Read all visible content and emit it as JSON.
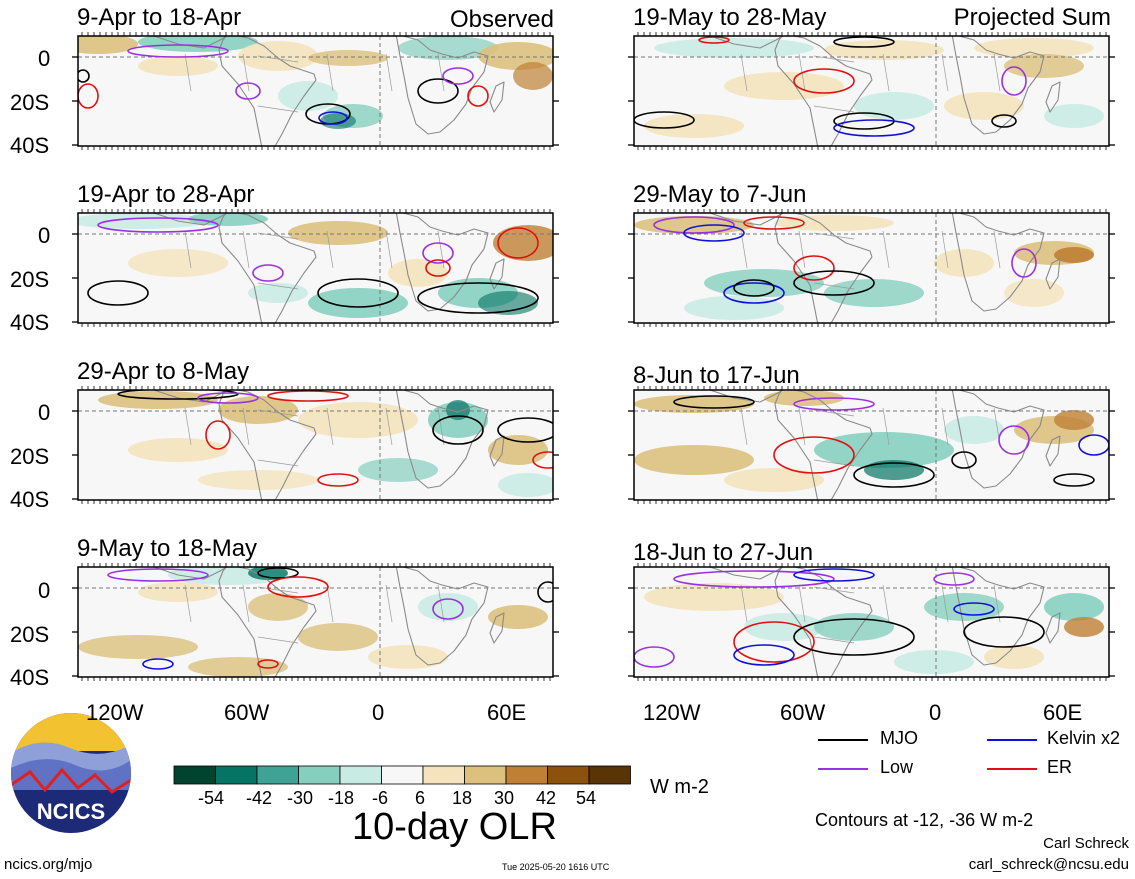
{
  "panels_left": [
    {
      "title": "9-Apr to 18-Apr",
      "source": "Observed"
    },
    {
      "title": "19-Apr to 28-Apr",
      "source": ""
    },
    {
      "title": "29-Apr to 8-May",
      "source": ""
    },
    {
      "title": "9-May to 18-May",
      "source": ""
    }
  ],
  "panels_right": [
    {
      "title": "19-May to 28-May",
      "source": "Projected Sum"
    },
    {
      "title": "29-May to 7-Jun",
      "source": ""
    },
    {
      "title": "8-Jun to 17-Jun",
      "source": ""
    },
    {
      "title": "18-Jun to 27-Jun",
      "source": ""
    }
  ],
  "lat_labels": [
    "0",
    "20S",
    "40S"
  ],
  "lon_labels": [
    "120W",
    "60W",
    "0",
    "60E"
  ],
  "legend": [
    {
      "label": "MJO",
      "color": "#000000"
    },
    {
      "label": "Kelvin x2",
      "color": "#1010d8"
    },
    {
      "label": "Low",
      "color": "#9a30e0"
    },
    {
      "label": "ER",
      "color": "#e01010"
    }
  ],
  "colorbar": {
    "ticks": [
      "-54",
      "-42",
      "-30",
      "-18",
      "-6",
      "6",
      "18",
      "30",
      "42",
      "54"
    ],
    "colors": [
      "#00432f",
      "#067464",
      "#3ea395",
      "#86cfbf",
      "#c8ebe3",
      "#f7f7f7",
      "#f4e3bd",
      "#dcc07d",
      "#bf8034",
      "#8c520d",
      "#583406"
    ],
    "units": "W m-2"
  },
  "main_title": "10-day OLR",
  "contour_note": "Contours at -12, -36 W m-2",
  "logo_text": "NCICS",
  "footer_left": "ncics.org/mjo",
  "footer_timestamp": "Tue 2025-05-20 1616 UTC",
  "author": "Carl Schreck",
  "email": "carl_schreck@ncsu.edu"
}
